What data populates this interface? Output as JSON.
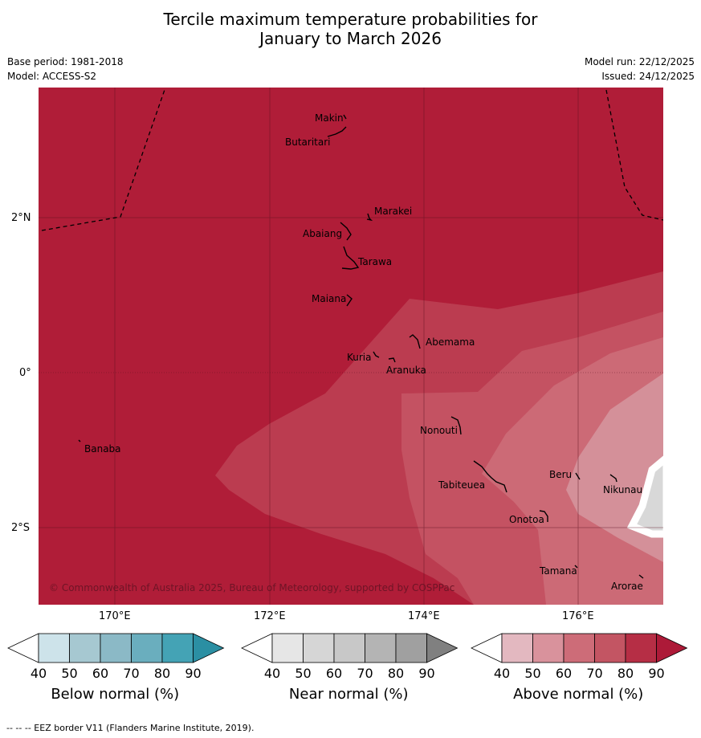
{
  "title_line1": "Tercile maximum temperature probabilities for",
  "title_line2": "January to March 2026",
  "base_period": "Base period: 1981-2018",
  "model": "Model: ACCESS-S2",
  "model_run": "Model run: 22/12/2025",
  "issued": "Issued: 24/12/2025",
  "lat_ticks": [
    "2°N",
    "0°",
    "2°S"
  ],
  "lon_ticks": [
    "170°E",
    "172°E",
    "174°E",
    "176°E"
  ],
  "copyright": "© Commonwealth of Australia 2025, Bureau of Meteorology, supported by COSPPac",
  "places": [
    "Makin",
    "Butaritari",
    "Marakei",
    "Abaiang",
    "Tarawa",
    "Maiana",
    "Abemama",
    "Kuria",
    "Aranuka",
    "Banaba",
    "Nonouti",
    "Beru",
    "Nikunau",
    "Tabiteuea",
    "Onotoa",
    "Tamana",
    "Arorae"
  ],
  "colorbars": [
    {
      "title": "Below normal (%)",
      "labels": [
        "40",
        "50",
        "60",
        "70",
        "80",
        "90"
      ],
      "colors": [
        "#ffffff",
        "#cde3ea",
        "#a6c8d1",
        "#8bb9c6",
        "#6aaebe",
        "#44a3b5",
        "#2b8fa3"
      ]
    },
    {
      "title": "Near normal (%)",
      "labels": [
        "40",
        "50",
        "60",
        "70",
        "80",
        "90"
      ],
      "colors": [
        "#ffffff",
        "#e6e6e6",
        "#d6d6d6",
        "#c8c8c8",
        "#b4b4b4",
        "#a0a0a0",
        "#808080"
      ]
    },
    {
      "title": "Above normal (%)",
      "labels": [
        "40",
        "50",
        "60",
        "70",
        "80",
        "90"
      ],
      "colors": [
        "#ffffff",
        "#e3b8c0",
        "#d9929c",
        "#cd6c78",
        "#c35563",
        "#b62e45",
        "#ad1a38"
      ]
    }
  ],
  "footer": "--  --  -- EEZ border V11 (Flanders Marine Institute, 2019)."
}
